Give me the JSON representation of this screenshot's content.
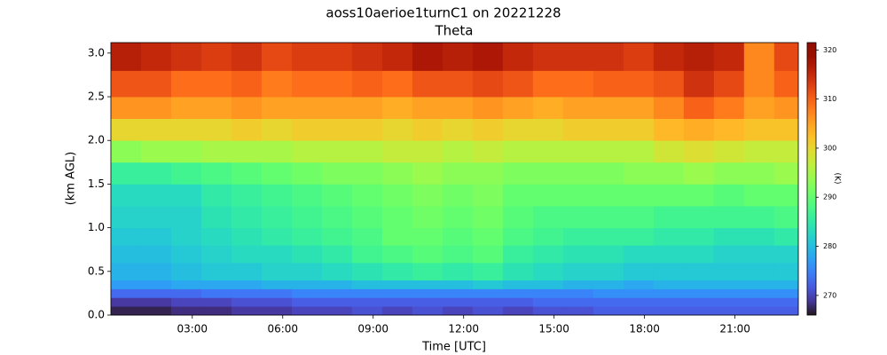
{
  "chart_data": {
    "type": "heatmap",
    "title": "aoss10aerioe1turnC1 on 20221228",
    "subtitle": "Theta",
    "xlabel": "Time [UTC]",
    "ylabel": "(km AGL)",
    "colormap": "turbo",
    "xlim": [
      0.3,
      23.1
    ],
    "ylim": [
      0,
      3.12
    ],
    "xticks": [
      {
        "value": 3,
        "label": "03:00"
      },
      {
        "value": 6,
        "label": "06:00"
      },
      {
        "value": 9,
        "label": "09:00"
      },
      {
        "value": 12,
        "label": "12:00"
      },
      {
        "value": 15,
        "label": "15:00"
      },
      {
        "value": 18,
        "label": "18:00"
      },
      {
        "value": 21,
        "label": "21:00"
      }
    ],
    "yticks": [
      {
        "value": 0,
        "label": "0.0"
      },
      0.5,
      {
        "value": 1,
        "label": "1.0"
      },
      1.5,
      {
        "value": 2,
        "label": "2.0"
      },
      2.5,
      {
        "value": 3,
        "label": "3.0"
      }
    ],
    "x_edges": [
      0.3,
      1.3,
      2.3,
      3.3,
      4.3,
      5.3,
      6.3,
      7.3,
      8.3,
      9.3,
      10.3,
      11.3,
      12.3,
      13.3,
      14.3,
      15.3,
      16.3,
      17.3,
      18.3,
      19.3,
      20.3,
      21.3,
      22.3,
      23.1
    ],
    "y_edges": [
      0,
      0.1,
      0.2,
      0.3,
      0.4,
      0.6,
      0.8,
      1.0,
      1.25,
      1.5,
      1.75,
      2.0,
      2.25,
      2.5,
      2.8,
      3.12
    ],
    "values": [
      [
        267,
        267,
        268,
        268,
        269,
        269,
        270,
        270,
        271,
        270,
        271,
        270,
        271,
        270,
        271,
        271,
        272,
        272,
        272,
        272,
        272,
        272,
        272
      ],
      [
        269,
        269,
        270,
        270,
        271,
        271,
        272,
        272,
        272,
        272,
        272,
        272,
        272,
        272,
        273,
        273,
        273,
        273,
        273,
        273,
        273,
        273,
        273
      ],
      [
        273,
        273,
        273,
        274,
        274,
        274,
        275,
        275,
        275,
        275,
        275,
        275,
        275,
        275,
        275,
        275,
        276,
        276,
        276,
        276,
        276,
        276,
        276
      ],
      [
        277,
        277,
        278,
        278,
        278,
        279,
        279,
        279,
        280,
        280,
        280,
        280,
        281,
        280,
        280,
        279,
        279,
        278,
        279,
        279,
        279,
        279,
        279
      ],
      [
        279,
        279,
        280,
        281,
        281,
        282,
        282,
        283,
        284,
        285,
        286,
        285,
        286,
        284,
        283,
        282,
        282,
        281,
        281,
        281,
        281,
        281,
        281
      ],
      [
        280,
        280,
        281,
        282,
        283,
        283,
        284,
        285,
        287,
        288,
        289,
        288,
        289,
        286,
        285,
        284,
        284,
        283,
        283,
        283,
        282,
        282,
        282
      ],
      [
        281,
        281,
        282,
        283,
        284,
        285,
        286,
        287,
        288,
        290,
        290,
        289,
        290,
        288,
        287,
        286,
        286,
        286,
        285,
        285,
        284,
        284,
        285
      ],
      [
        282,
        282,
        282,
        284,
        285,
        286,
        287,
        288,
        289,
        290,
        291,
        290,
        291,
        289,
        288,
        288,
        288,
        288,
        287,
        287,
        287,
        287,
        288
      ],
      [
        283,
        283,
        283,
        285,
        286,
        287,
        288,
        289,
        290,
        291,
        292,
        291,
        292,
        290,
        290,
        290,
        290,
        290,
        290,
        290,
        289,
        290,
        290
      ],
      [
        286,
        286,
        287,
        288,
        289,
        290,
        291,
        292,
        292,
        293,
        294,
        293,
        293,
        292,
        292,
        292,
        292,
        293,
        293,
        294,
        293,
        293,
        294
      ],
      [
        293,
        294,
        294,
        295,
        295,
        295,
        296,
        296,
        296,
        297,
        297,
        296,
        297,
        296,
        296,
        296,
        296,
        296,
        298,
        299,
        298,
        297,
        297
      ],
      [
        300,
        300,
        300,
        300,
        301,
        300,
        301,
        301,
        301,
        300,
        301,
        300,
        301,
        300,
        300,
        301,
        301,
        301,
        303,
        304,
        303,
        302,
        302
      ],
      [
        306,
        306,
        305,
        305,
        306,
        305,
        305,
        305,
        305,
        304,
        305,
        305,
        306,
        305,
        304,
        305,
        305,
        305,
        307,
        310,
        308,
        305,
        306
      ],
      [
        311,
        311,
        309,
        309,
        310,
        308,
        309,
        309,
        310,
        309,
        311,
        311,
        312,
        311,
        309,
        309,
        310,
        310,
        311,
        314,
        312,
        307,
        310
      ],
      [
        316,
        315,
        314,
        313,
        314,
        312,
        313,
        313,
        314,
        315,
        317,
        316,
        317,
        315,
        314,
        314,
        314,
        313,
        315,
        316,
        315,
        307,
        312
      ]
    ],
    "colorbar": {
      "label": "(K)",
      "lim": [
        266,
        321.5
      ],
      "ticks": [
        270,
        280,
        290,
        300,
        310,
        320
      ]
    }
  }
}
